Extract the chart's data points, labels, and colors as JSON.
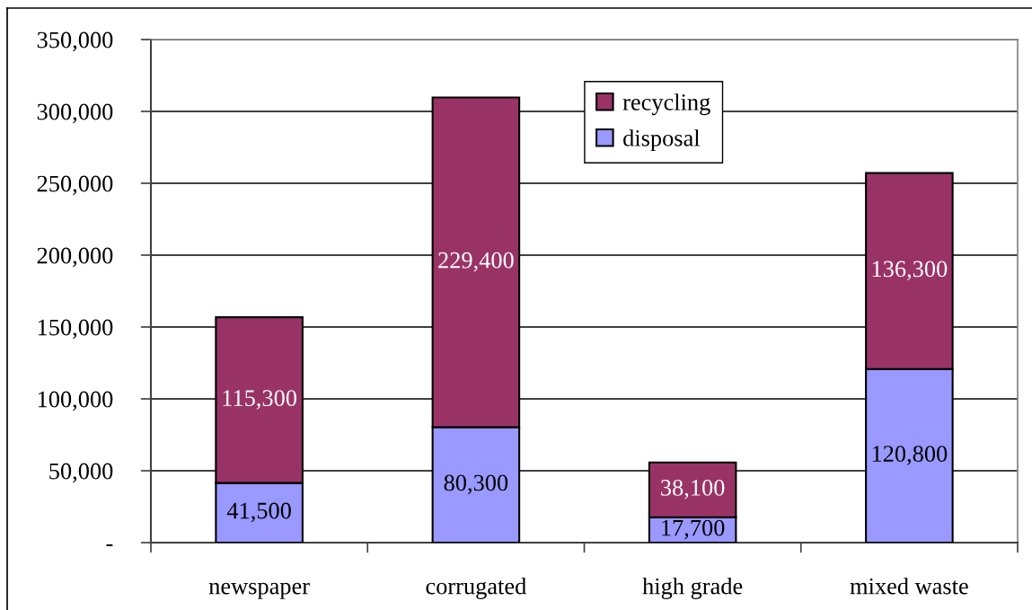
{
  "chart_data": {
    "type": "bar",
    "stacked": true,
    "categories": [
      "newspaper",
      "corrugated",
      "high grade",
      "mixed waste"
    ],
    "series": [
      {
        "name": "disposal",
        "color": "#9999ff",
        "values": [
          41500,
          80300,
          17700,
          120800
        ],
        "value_labels": [
          "41,500",
          "80,300",
          "17,700",
          "120,800"
        ]
      },
      {
        "name": "recycling",
        "color": "#993366",
        "values": [
          115300,
          229400,
          38100,
          136300
        ],
        "value_labels": [
          "115,300",
          "229,400",
          "38,100",
          "136,300"
        ]
      }
    ],
    "ylim": [
      0,
      350000
    ],
    "yticks": [
      {
        "value": 0,
        "label": "-"
      },
      {
        "value": 50000,
        "label": "50,000"
      },
      {
        "value": 100000,
        "label": "100,000"
      },
      {
        "value": 150000,
        "label": "150,000"
      },
      {
        "value": 200000,
        "label": "200,000"
      },
      {
        "value": 250000,
        "label": "250,000"
      },
      {
        "value": 300000,
        "label": "300,000"
      },
      {
        "value": 350000,
        "label": "350,000"
      }
    ],
    "grid": "y",
    "legend": "top"
  }
}
